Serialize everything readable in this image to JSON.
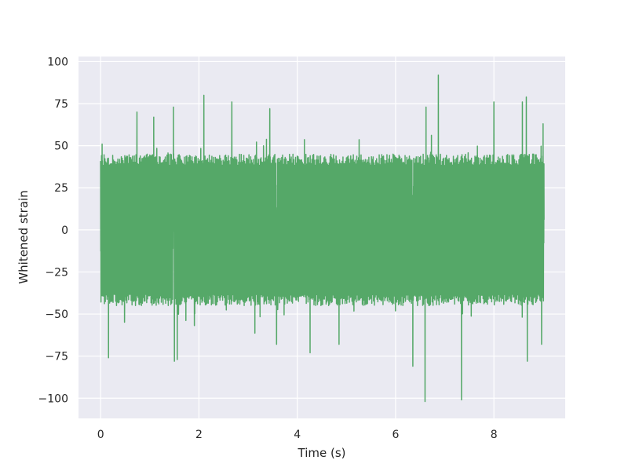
{
  "chart_data": {
    "type": "line",
    "title": "",
    "xlabel": "Time (s)",
    "ylabel": "Whitened strain",
    "xlim": [
      -0.45,
      9.45
    ],
    "ylim": [
      -112,
      103
    ],
    "xticks": [
      0,
      2,
      4,
      6,
      8
    ],
    "yticks": [
      -100,
      -75,
      -50,
      -25,
      0,
      25,
      50,
      75,
      100
    ],
    "xtick_labels": [
      "0",
      "2",
      "4",
      "6",
      "8"
    ],
    "ytick_labels": [
      "−100",
      "−75",
      "−50",
      "−25",
      "0",
      "25",
      "50",
      "75",
      "100"
    ],
    "grid": true,
    "legend": "none",
    "background_color": "#eaeaf2",
    "grid_color": "#ffffff",
    "series": [
      {
        "color": "#55a868",
        "x_range": [
          0,
          9.02
        ],
        "noise_envelope": {
          "typical_max": 45,
          "typical_min": -45
        },
        "peaks": [
          {
            "x": 0.03,
            "y": 51
          },
          {
            "x": 0.16,
            "y": -76
          },
          {
            "x": 0.74,
            "y": 70
          },
          {
            "x": 1.08,
            "y": 67
          },
          {
            "x": 1.48,
            "y": 73
          },
          {
            "x": 1.5,
            "y": -78
          },
          {
            "x": 1.56,
            "y": -77
          },
          {
            "x": 2.1,
            "y": 80
          },
          {
            "x": 2.67,
            "y": 76
          },
          {
            "x": 3.44,
            "y": 72
          },
          {
            "x": 3.58,
            "y": -68
          },
          {
            "x": 4.26,
            "y": -73
          },
          {
            "x": 4.85,
            "y": -68
          },
          {
            "x": 6.35,
            "y": -81
          },
          {
            "x": 6.62,
            "y": 73
          },
          {
            "x": 6.6,
            "y": -102
          },
          {
            "x": 6.87,
            "y": 92
          },
          {
            "x": 7.34,
            "y": -101
          },
          {
            "x": 8.0,
            "y": 76
          },
          {
            "x": 8.58,
            "y": 76
          },
          {
            "x": 8.66,
            "y": 79
          },
          {
            "x": 8.68,
            "y": -78
          },
          {
            "x": 8.97,
            "y": -68
          },
          {
            "x": 9.0,
            "y": 63
          }
        ]
      }
    ]
  }
}
